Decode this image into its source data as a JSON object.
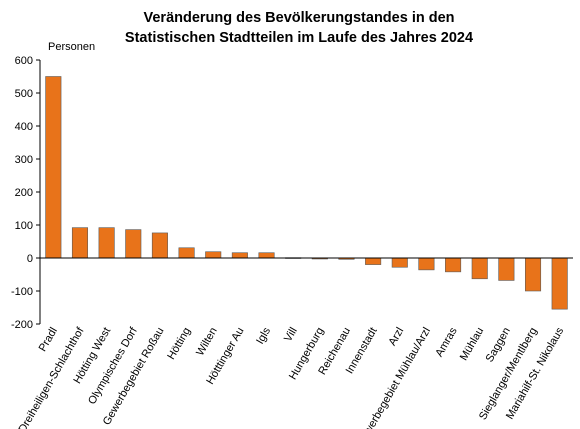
{
  "chart_data": {
    "type": "bar",
    "title": [
      "Veränderung des Bevölkerungstandes in den",
      "Statistischen Stadtteilen im Laufe des Jahres 2024"
    ],
    "ylabel": "Personen",
    "xlabel": "",
    "ylim": [
      -200,
      600
    ],
    "yticks": [
      600,
      500,
      400,
      300,
      200,
      100,
      0,
      -100,
      -200
    ],
    "grid": false,
    "bar_color": "#e8731a",
    "bar_stroke": "#5a5a5a",
    "categories": [
      "Pradl",
      "Dreiheiligen-Schlachthof",
      "Hötting West",
      "Olympisches Dorf",
      "Gewerbegebiet Roßau",
      "Hötting",
      "Wilten",
      "Hötttinger Au",
      "Igls",
      "Vill",
      "Hungerburg",
      "Reichenau",
      "Innenstadt",
      "Arzl",
      "Gewerbegebiet Mühlau/Arzl",
      "Amras",
      "Mühlau",
      "Saggen",
      "Sieglanger/Mentlberg",
      "Mariahilf-St. Nikolaus"
    ],
    "values": [
      550,
      92,
      92,
      86,
      76,
      31,
      19,
      16,
      16,
      1,
      -3,
      -4,
      -20,
      -28,
      -36,
      -42,
      -63,
      -68,
      -100,
      -155
    ]
  }
}
